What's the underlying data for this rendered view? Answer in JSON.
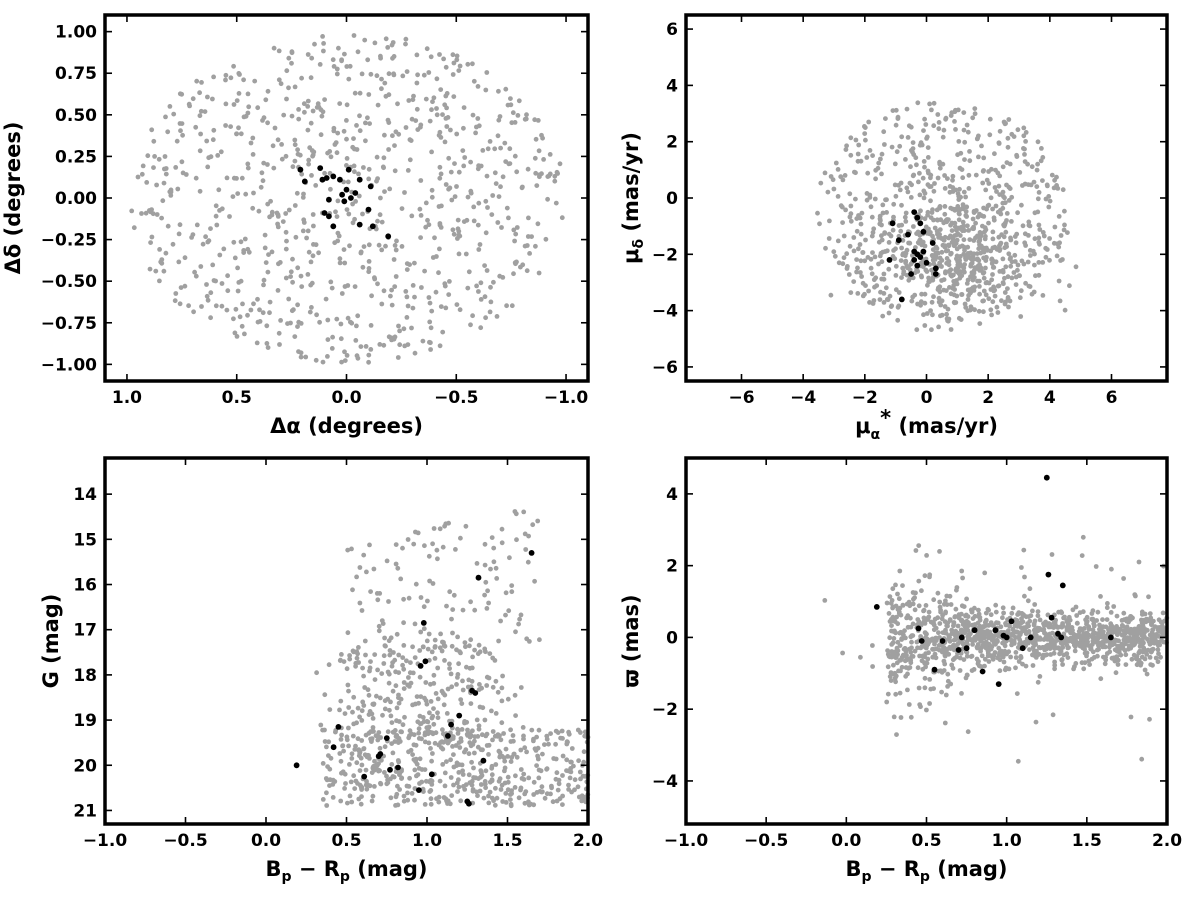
{
  "colors": {
    "field": "#a0a0a0",
    "member": "#000000",
    "frame": "#000000"
  },
  "chart_data": [
    {
      "panel": "sky",
      "type": "scatter",
      "xlabel": "Δα (degrees)",
      "ylabel": "Δδ (degrees)",
      "xlim": [
        1.1,
        -1.1
      ],
      "ylim": [
        -1.1,
        1.1
      ],
      "x_reversed": true,
      "xticks": [
        1.0,
        0.5,
        0.0,
        -0.5,
        -1.0
      ],
      "xtick_labels": [
        "1.0",
        "0.5",
        "0.0",
        "−0.5",
        "−1.0"
      ],
      "yticks": [
        -1.0,
        -0.75,
        -0.5,
        -0.25,
        0.0,
        0.25,
        0.5,
        0.75,
        1.0
      ],
      "ytick_labels": [
        "−1.00",
        "−0.75",
        "−0.50",
        "−0.25",
        "0.00",
        "0.25",
        "0.50",
        "0.75",
        "1.00"
      ],
      "grid": false,
      "series": [
        {
          "role": "field",
          "color": "#a0a0a0",
          "distribution": "uniform disk, radius 1.0 deg",
          "n": 850
        },
        {
          "role": "member",
          "color": "#000000",
          "x": [
            0.21,
            0.19,
            0.12,
            0.09,
            0.06,
            0.02,
            0.0,
            -0.02,
            0.01,
            0.1,
            0.08,
            0.06,
            -0.06,
            -0.11,
            -0.1,
            -0.12,
            -0.19,
            0.11,
            0.08,
            0.03,
            -0.06,
            -0.01,
            -0.04
          ],
          "y": [
            0.17,
            0.1,
            0.18,
            0.12,
            0.13,
            0.02,
            0.05,
            0.0,
            -0.02,
            -0.09,
            -0.11,
            -0.17,
            0.11,
            0.07,
            -0.07,
            -0.17,
            -0.23,
            0.11,
            -0.01,
            0.11,
            -0.16,
            0.17,
            0.03
          ]
        }
      ]
    },
    {
      "panel": "proper-motion",
      "type": "scatter",
      "xlabel": "μα* (mas/yr)",
      "ylabel": "μδ (mas/yr)",
      "xlim": [
        -7.8,
        7.8
      ],
      "ylim": [
        -6.5,
        6.5
      ],
      "xticks": [
        -6,
        -4,
        -2,
        0,
        2,
        4,
        6
      ],
      "xtick_labels": [
        "−6",
        "−4",
        "−2",
        "0",
        "2",
        "4",
        "6"
      ],
      "yticks": [
        -6,
        -4,
        -2,
        0,
        2,
        4,
        6
      ],
      "ytick_labels": [
        "−6",
        "−4",
        "−2",
        "0",
        "2",
        "4",
        "6"
      ],
      "grid": false,
      "series": [
        {
          "role": "field",
          "color": "#a0a0a0",
          "distribution": "cloud centred near (0.5, -1.5), radius about 4 mas/yr",
          "n": 1000
        },
        {
          "role": "member",
          "color": "#000000",
          "x": [
            -1.1,
            -0.4,
            -0.3,
            -0.2,
            -0.1,
            0.2,
            -0.6,
            -0.9,
            -0.4,
            -0.3,
            -0.2,
            -0.4,
            -0.3,
            0.3,
            -0.1,
            0.0,
            0.3,
            -0.5,
            -0.8,
            -1.2
          ],
          "y": [
            -0.9,
            -0.5,
            -0.7,
            -0.9,
            -1.2,
            -1.6,
            -1.3,
            -1.5,
            -1.9,
            -2.0,
            -2.1,
            -2.2,
            -2.4,
            -2.5,
            -1.9,
            -2.3,
            -2.7,
            -2.7,
            -3.6,
            -2.2
          ]
        }
      ]
    },
    {
      "panel": "colour-magnitude",
      "type": "scatter",
      "xlabel": "Bp − Rp (mag)",
      "ylabel": "G (mag)",
      "xlim": [
        -1.0,
        2.0
      ],
      "ylim": [
        21.3,
        13.2
      ],
      "y_reversed": true,
      "xticks": [
        -1.0,
        -0.5,
        0.0,
        0.5,
        1.0,
        1.5,
        2.0
      ],
      "xtick_labels": [
        "−1.0",
        "−0.5",
        "0.0",
        "0.5",
        "1.0",
        "1.5",
        "2.0"
      ],
      "yticks": [
        14,
        15,
        16,
        17,
        18,
        19,
        20,
        21
      ],
      "ytick_labels": [
        "14",
        "15",
        "16",
        "17",
        "18",
        "19",
        "20",
        "21"
      ],
      "grid": false,
      "series": [
        {
          "role": "field",
          "color": "#a0a0a0",
          "distribution": "dense near G 19-21, Bp-Rp 0.3-1.9; sparse bright tail",
          "n": 900
        },
        {
          "role": "member",
          "color": "#000000",
          "x": [
            0.19,
            0.42,
            0.45,
            0.61,
            0.7,
            0.71,
            0.75,
            0.77,
            0.82,
            0.95,
            0.96,
            0.99,
            1.03,
            1.13,
            1.15,
            1.2,
            1.25,
            1.26,
            1.28,
            1.3,
            1.32,
            1.35,
            1.65,
            0.98
          ],
          "y": [
            20.0,
            19.6,
            19.15,
            20.25,
            19.8,
            19.75,
            19.4,
            20.1,
            20.05,
            20.55,
            17.8,
            17.7,
            20.2,
            19.35,
            19.1,
            18.9,
            20.8,
            20.85,
            18.35,
            18.4,
            15.85,
            19.9,
            15.3,
            16.85
          ]
        }
      ]
    },
    {
      "panel": "parallax",
      "type": "scatter",
      "xlabel": "Bp − Rp (mag)",
      "ylabel": "ϖ (mas)",
      "xlim": [
        -1.0,
        2.0
      ],
      "ylim": [
        -5.2,
        5.0
      ],
      "xticks": [
        -1.0,
        -0.5,
        0.0,
        0.5,
        1.0,
        1.5,
        2.0
      ],
      "xtick_labels": [
        "−1.0",
        "−0.5",
        "0.0",
        "0.5",
        "1.0",
        "1.5",
        "2.0"
      ],
      "yticks": [
        -4,
        -2,
        0,
        2,
        4
      ],
      "ytick_labels": [
        "−4",
        "−2",
        "0",
        "2",
        "4"
      ],
      "grid": false,
      "series": [
        {
          "role": "field",
          "color": "#a0a0a0",
          "distribution": "band centred at 0 mas, spread about 0.6 mas, widening at bluer colours",
          "n": 1300
        },
        {
          "role": "member",
          "color": "#000000",
          "x": [
            0.19,
            0.45,
            0.55,
            0.6,
            0.7,
            0.72,
            0.75,
            0.8,
            0.85,
            0.93,
            0.95,
            0.98,
            1.0,
            1.03,
            1.1,
            1.15,
            1.25,
            1.26,
            1.28,
            1.32,
            1.34,
            1.35,
            1.65,
            0.47
          ],
          "y": [
            0.85,
            0.25,
            -0.9,
            -0.1,
            -0.35,
            0.0,
            -0.3,
            0.2,
            -0.95,
            0.2,
            -1.3,
            0.05,
            0.0,
            0.45,
            -0.3,
            0.0,
            4.45,
            1.75,
            0.55,
            0.1,
            0.0,
            1.45,
            0.0,
            -0.1
          ]
        }
      ]
    }
  ]
}
